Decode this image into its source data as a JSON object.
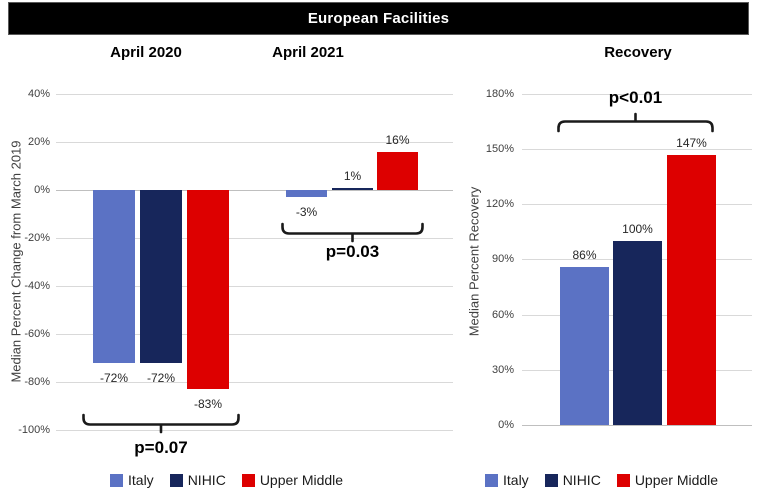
{
  "title": "European Facilities",
  "colors": {
    "italy": "#5B72C4",
    "nihic": "#17265B",
    "upper_middle": "#DD0000",
    "banner_bg": "#000000",
    "banner_text": "#FFFFFF",
    "gridline": "#D9D9D9",
    "baseline": "#BFBFBF"
  },
  "legend": {
    "items": [
      "Italy",
      "NIHIC",
      "Upper Middle"
    ]
  },
  "chart_data": [
    {
      "type": "bar",
      "panel": "left",
      "groups": [
        "April 2020",
        "April 2021"
      ],
      "series": [
        {
          "name": "Italy",
          "values": [
            -72,
            -3
          ]
        },
        {
          "name": "NIHIC",
          "values": [
            -72,
            1
          ]
        },
        {
          "name": "Upper Middle",
          "values": [
            -83,
            16
          ]
        }
      ],
      "value_labels": [
        [
          "-72%",
          "-72%",
          "-83%"
        ],
        [
          "-3%",
          "1%",
          "16%"
        ]
      ],
      "ylabel": "Median Percent Change from March 2019",
      "ylim": [
        -100,
        40
      ],
      "ytick_step": 20,
      "ytick_labels": [
        "40%",
        "20%",
        "0%",
        "-20%",
        "-40%",
        "-60%",
        "-80%",
        "-100%"
      ],
      "grid": true,
      "legend_position": "bottom",
      "annotations": [
        {
          "group": "April 2020",
          "label": "p=0.07",
          "position": "below"
        },
        {
          "group": "April 2021",
          "label": "p=0.03",
          "position": "below"
        }
      ]
    },
    {
      "type": "bar",
      "panel": "right",
      "title": "Recovery",
      "groups": [
        "Recovery"
      ],
      "series": [
        {
          "name": "Italy",
          "values": [
            86
          ]
        },
        {
          "name": "NIHIC",
          "values": [
            100
          ]
        },
        {
          "name": "Upper Middle",
          "values": [
            147
          ]
        }
      ],
      "value_labels": [
        [
          "86%",
          "100%",
          "147%"
        ]
      ],
      "ylabel": "Median Percent Recovery",
      "ylim": [
        0,
        180
      ],
      "ytick_step": 30,
      "ytick_labels": [
        "180%",
        "150%",
        "120%",
        "90%",
        "60%",
        "30%",
        "0%"
      ],
      "grid": true,
      "legend_position": "bottom",
      "annotations": [
        {
          "group": "Recovery",
          "label": "p<0.01",
          "position": "above"
        }
      ]
    }
  ]
}
